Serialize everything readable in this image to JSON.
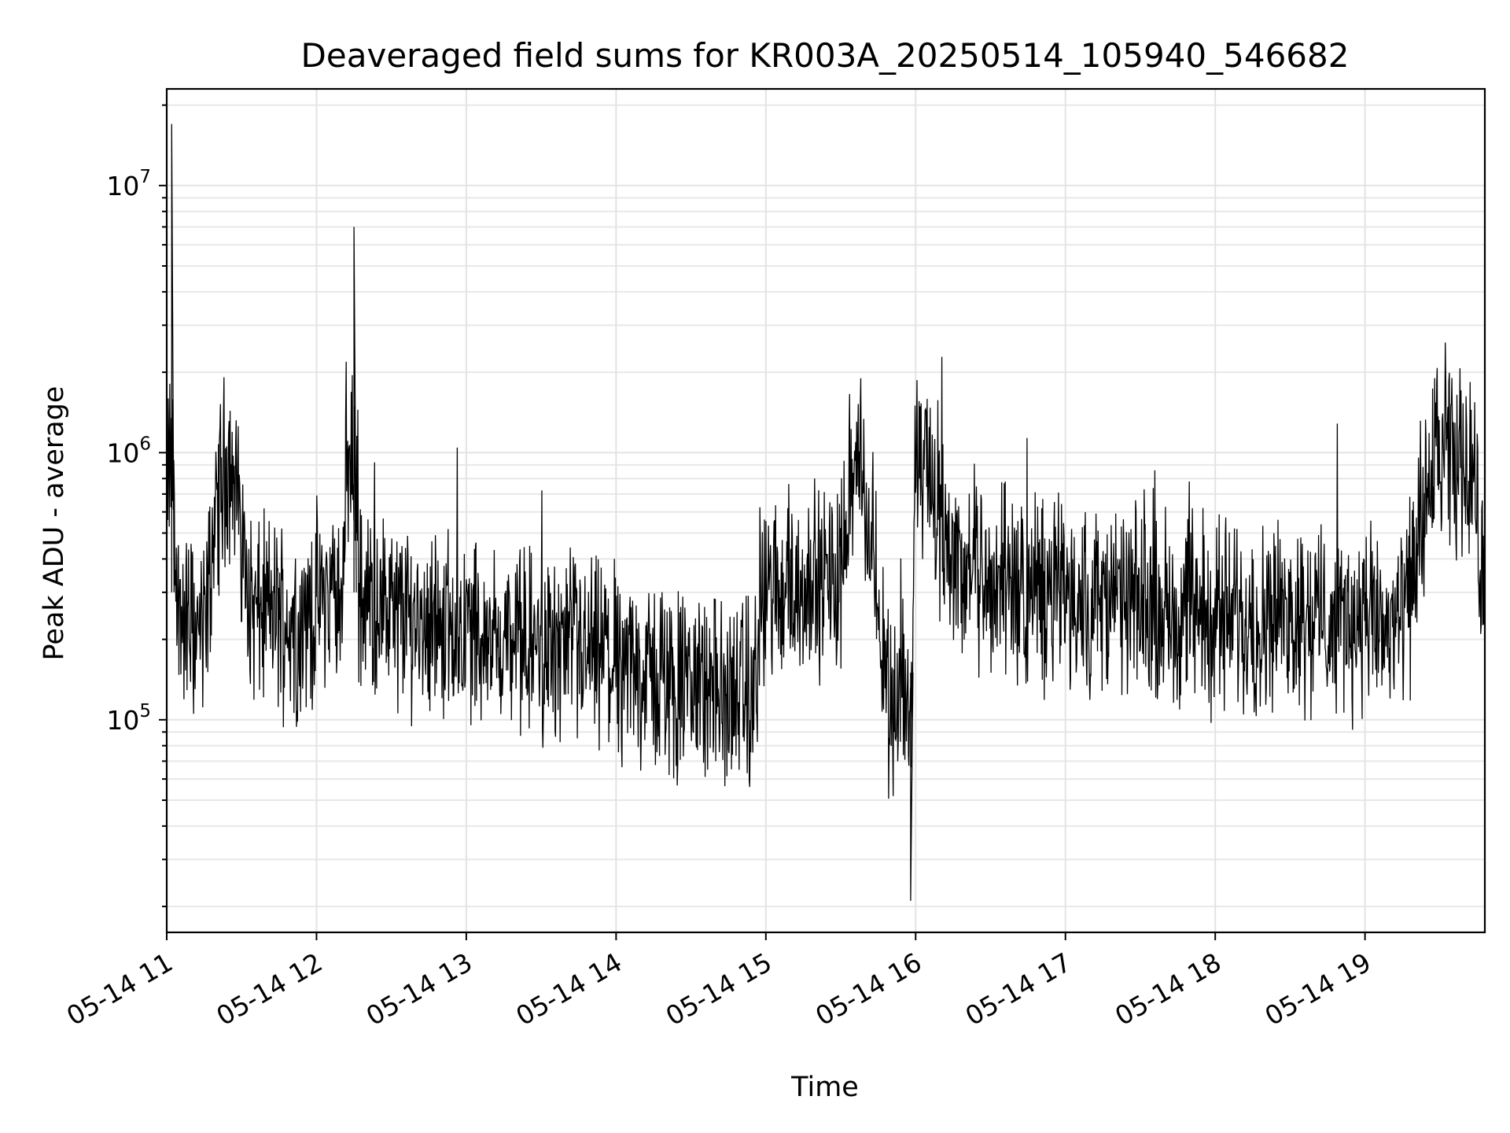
{
  "chart_data": {
    "type": "line",
    "title": "Deaveraged field sums for KR003A_20250514_105940_546682",
    "xlabel": "Time",
    "ylabel": "Peak ADU - average",
    "yscale": "log",
    "grid": true,
    "xlim": [
      "2025-05-14 11:00",
      "2025-05-14 19:48"
    ],
    "ylim": [
      16000,
      23000000
    ],
    "x_ticks": [
      "05-14 11",
      "05-14 12",
      "05-14 13",
      "05-14 14",
      "05-14 15",
      "05-14 16",
      "05-14 17",
      "05-14 18",
      "05-14 19"
    ],
    "y_ticks": [
      {
        "base": "10",
        "exp": "5",
        "value": 100000
      },
      {
        "base": "10",
        "exp": "6",
        "value": 1000000
      },
      {
        "base": "10",
        "exp": "7",
        "value": 10000000
      }
    ],
    "line_color": "#000000",
    "series": [
      {
        "x": [
          "2025-05-14 11:00",
          "2025-05-14 11:02",
          "2025-05-14 11:03",
          "2025-05-14 11:05",
          "2025-05-14 11:10",
          "2025-05-14 11:15",
          "2025-05-14 11:20",
          "2025-05-14 11:25",
          "2025-05-14 11:30",
          "2025-05-14 11:35",
          "2025-05-14 11:40",
          "2025-05-14 11:45",
          "2025-05-14 11:50",
          "2025-05-14 11:55",
          "2025-05-14 12:00",
          "2025-05-14 12:10",
          "2025-05-14 12:15",
          "2025-05-14 12:17",
          "2025-05-14 12:20",
          "2025-05-14 12:30",
          "2025-05-14 12:45",
          "2025-05-14 13:00",
          "2025-05-14 13:15",
          "2025-05-14 13:30",
          "2025-05-14 13:45",
          "2025-05-14 14:00",
          "2025-05-14 14:10",
          "2025-05-14 14:20",
          "2025-05-14 14:35",
          "2025-05-14 14:45",
          "2025-05-14 14:55",
          "2025-05-14 15:00",
          "2025-05-14 15:15",
          "2025-05-14 15:30",
          "2025-05-14 15:35",
          "2025-05-14 15:45",
          "2025-05-14 15:58",
          "2025-05-14 16:00",
          "2025-05-14 16:15",
          "2025-05-14 16:30",
          "2025-05-14 16:45",
          "2025-05-14 17:00",
          "2025-05-14 17:15",
          "2025-05-14 17:30",
          "2025-05-14 17:45",
          "2025-05-14 18:00",
          "2025-05-14 18:15",
          "2025-05-14 18:30",
          "2025-05-14 18:45",
          "2025-05-14 19:00",
          "2025-05-14 19:15",
          "2025-05-14 19:30",
          "2025-05-14 19:40",
          "2025-05-14 19:48"
        ],
        "y": [
          280000,
          17000000,
          400000,
          250000,
          220000,
          210000,
          650000,
          1050000,
          500000,
          240000,
          260000,
          250000,
          230000,
          220000,
          280000,
          300000,
          7000000,
          300000,
          280000,
          250000,
          240000,
          220000,
          200000,
          190000,
          180000,
          160000,
          150000,
          140000,
          130000,
          125000,
          120000,
          300000,
          320000,
          340000,
          1300000,
          300000,
          21000,
          1350000,
          380000,
          330000,
          300000,
          290000,
          280000,
          270000,
          260000,
          250000,
          240000,
          250000,
          240000,
          230000,
          220000,
          1200000,
          1400000,
          300000
        ]
      }
    ]
  }
}
